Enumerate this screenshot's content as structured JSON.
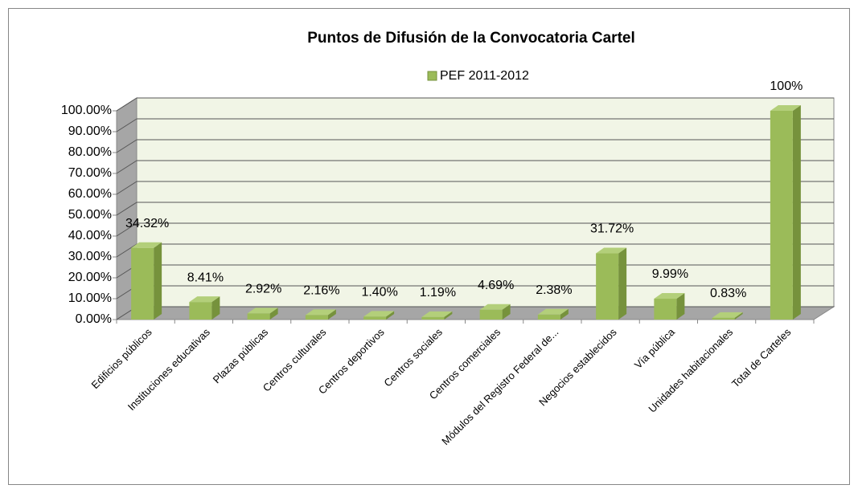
{
  "chart_data": {
    "type": "bar3d",
    "title": "Puntos de Difusión de la Convocatoria Cartel",
    "categories": [
      "Edificios públicos",
      "Instituciones educativas",
      "Plazas públicas",
      "Centros culturales",
      "Centros deportivos",
      "Centros sociales",
      "Centros comerciales",
      "Módulos del Registro Federal de...",
      "Negocios establecidos",
      "Vía pública",
      "Unidades habitacionales",
      "Total de Carteles"
    ],
    "series": [
      {
        "name": "PEF 2011-2012",
        "color": "#9bbb59",
        "values": [
          34.32,
          8.41,
          2.92,
          2.16,
          1.4,
          1.19,
          4.69,
          2.38,
          31.72,
          9.99,
          0.83,
          100
        ],
        "value_labels": [
          "34.32%",
          "8.41%",
          "2.92%",
          "2.16%",
          "1.40%",
          "1.19%",
          "4.69%",
          "2.38%",
          "31.72%",
          "9.99%",
          "0.83%",
          "100%"
        ]
      }
    ],
    "ylim": [
      0,
      100
    ],
    "yticks": [
      {
        "value": 0,
        "label": "0.00%"
      },
      {
        "value": 10,
        "label": "10.00%"
      },
      {
        "value": 20,
        "label": "20.00%"
      },
      {
        "value": 30,
        "label": "30.00%"
      },
      {
        "value": 40,
        "label": "40.00%"
      },
      {
        "value": 50,
        "label": "50.00%"
      },
      {
        "value": 60,
        "label": "60.00%"
      },
      {
        "value": 70,
        "label": "70.00%"
      },
      {
        "value": 80,
        "label": "80.00%"
      },
      {
        "value": 90,
        "label": "90.00%"
      },
      {
        "value": 100,
        "label": "100.00%"
      }
    ],
    "grid": true,
    "legend": "top"
  }
}
